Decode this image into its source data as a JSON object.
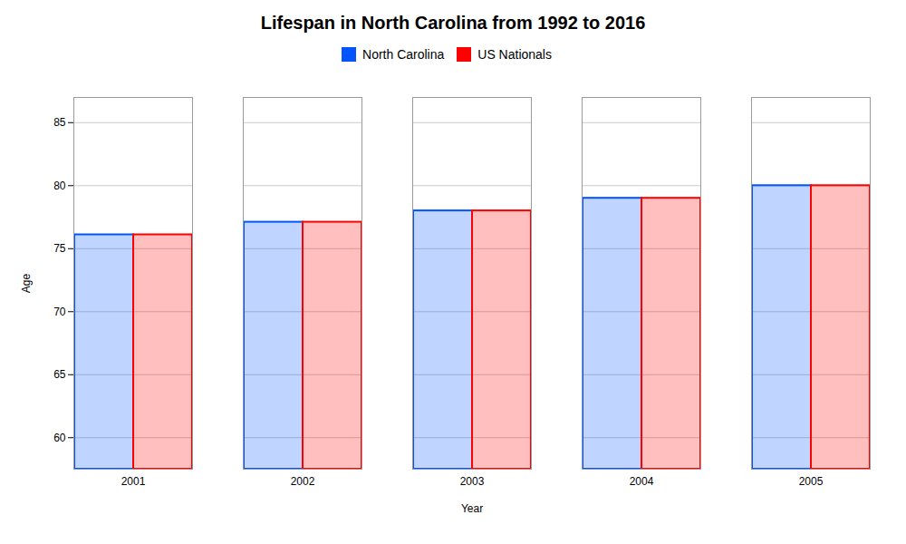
{
  "chart_data": {
    "type": "bar",
    "title": "Lifespan in North Carolina from 1992 to 2016",
    "xlabel": "Year",
    "ylabel": "Age",
    "categories": [
      2001,
      2002,
      2003,
      2004,
      2005
    ],
    "series": [
      {
        "name": "North Carolina",
        "color": "#0055ff",
        "values": [
          76.1,
          77.1,
          78.0,
          79.0,
          80.0
        ]
      },
      {
        "name": "US Nationals",
        "color": "#ff0000",
        "values": [
          76.1,
          77.1,
          78.0,
          79.0,
          80.0
        ]
      }
    ],
    "ylim": [
      57.5,
      87
    ],
    "yticks": [
      60,
      65,
      70,
      75,
      80,
      85
    ],
    "grid": true,
    "legend": "top"
  }
}
